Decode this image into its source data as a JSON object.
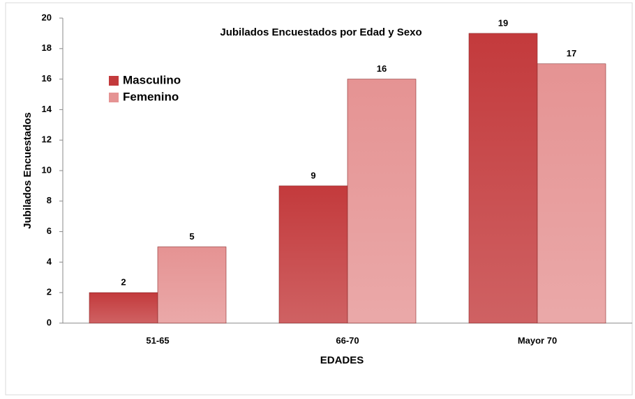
{
  "chart_data": {
    "type": "bar",
    "title": "Jubilados  Encuestados por Edad y Sexo",
    "x_label": "EDADES",
    "y_label": "Jubilados Encuestados",
    "categories": [
      "51-65",
      "66-70",
      "Mayor 70"
    ],
    "series": [
      {
        "name": "Masculino",
        "color": "#c33a3c",
        "values": [
          2,
          9,
          19
        ]
      },
      {
        "name": "Femenino",
        "color": "#e59393",
        "values": [
          5,
          16,
          17
        ]
      }
    ],
    "ylim": [
      0,
      20
    ],
    "yticks": [
      0,
      2,
      4,
      6,
      8,
      10,
      12,
      14,
      16,
      18,
      20
    ],
    "grid": false,
    "legend": "upper left"
  }
}
